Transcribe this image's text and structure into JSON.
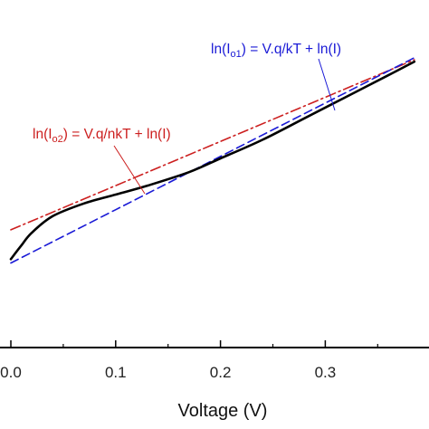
{
  "chart_data": {
    "type": "line",
    "xlabel": "Voltage (V)",
    "ylabel": "",
    "title": "",
    "xlim": [
      0.0,
      0.385
    ],
    "x_ticks": [
      "0.0",
      "0.1",
      "0.2",
      "0.3"
    ],
    "x_tick_values": [
      0.0,
      0.1,
      0.2,
      0.3
    ],
    "grid": false,
    "legend": "none",
    "series": [
      {
        "name": "",
        "style": "solid",
        "color": "#000000",
        "x": [
          0.0,
          0.01,
          0.02,
          0.04,
          0.07,
          0.1,
          0.13,
          0.17,
          0.2,
          0.24,
          0.28,
          0.32,
          0.36,
          0.385
        ],
        "y": [
          1.09,
          1.23,
          1.36,
          1.53,
          1.66,
          1.75,
          1.84,
          1.98,
          2.12,
          2.31,
          2.53,
          2.75,
          2.97,
          3.11
        ]
      },
      {
        "name": "",
        "style": "dashed",
        "color": "#1a1ad6",
        "x": [
          0.0,
          0.385
        ],
        "y": [
          1.05,
          3.15
        ]
      },
      {
        "name": "",
        "style": "dashdot",
        "color": "#cc1f1f",
        "x": [
          0.0,
          0.385
        ],
        "y": [
          1.39,
          3.13
        ]
      }
    ],
    "annotations": [
      {
        "id": "blue",
        "color": "#1a1ad6",
        "parts": [
          "ln(I",
          "o1",
          ") = V.q/kT + ln(I)"
        ]
      },
      {
        "id": "red",
        "color": "#cc1f1f",
        "parts": [
          "ln(I",
          "o2",
          ") = V.q/nkT + ln(I)"
        ]
      }
    ]
  }
}
